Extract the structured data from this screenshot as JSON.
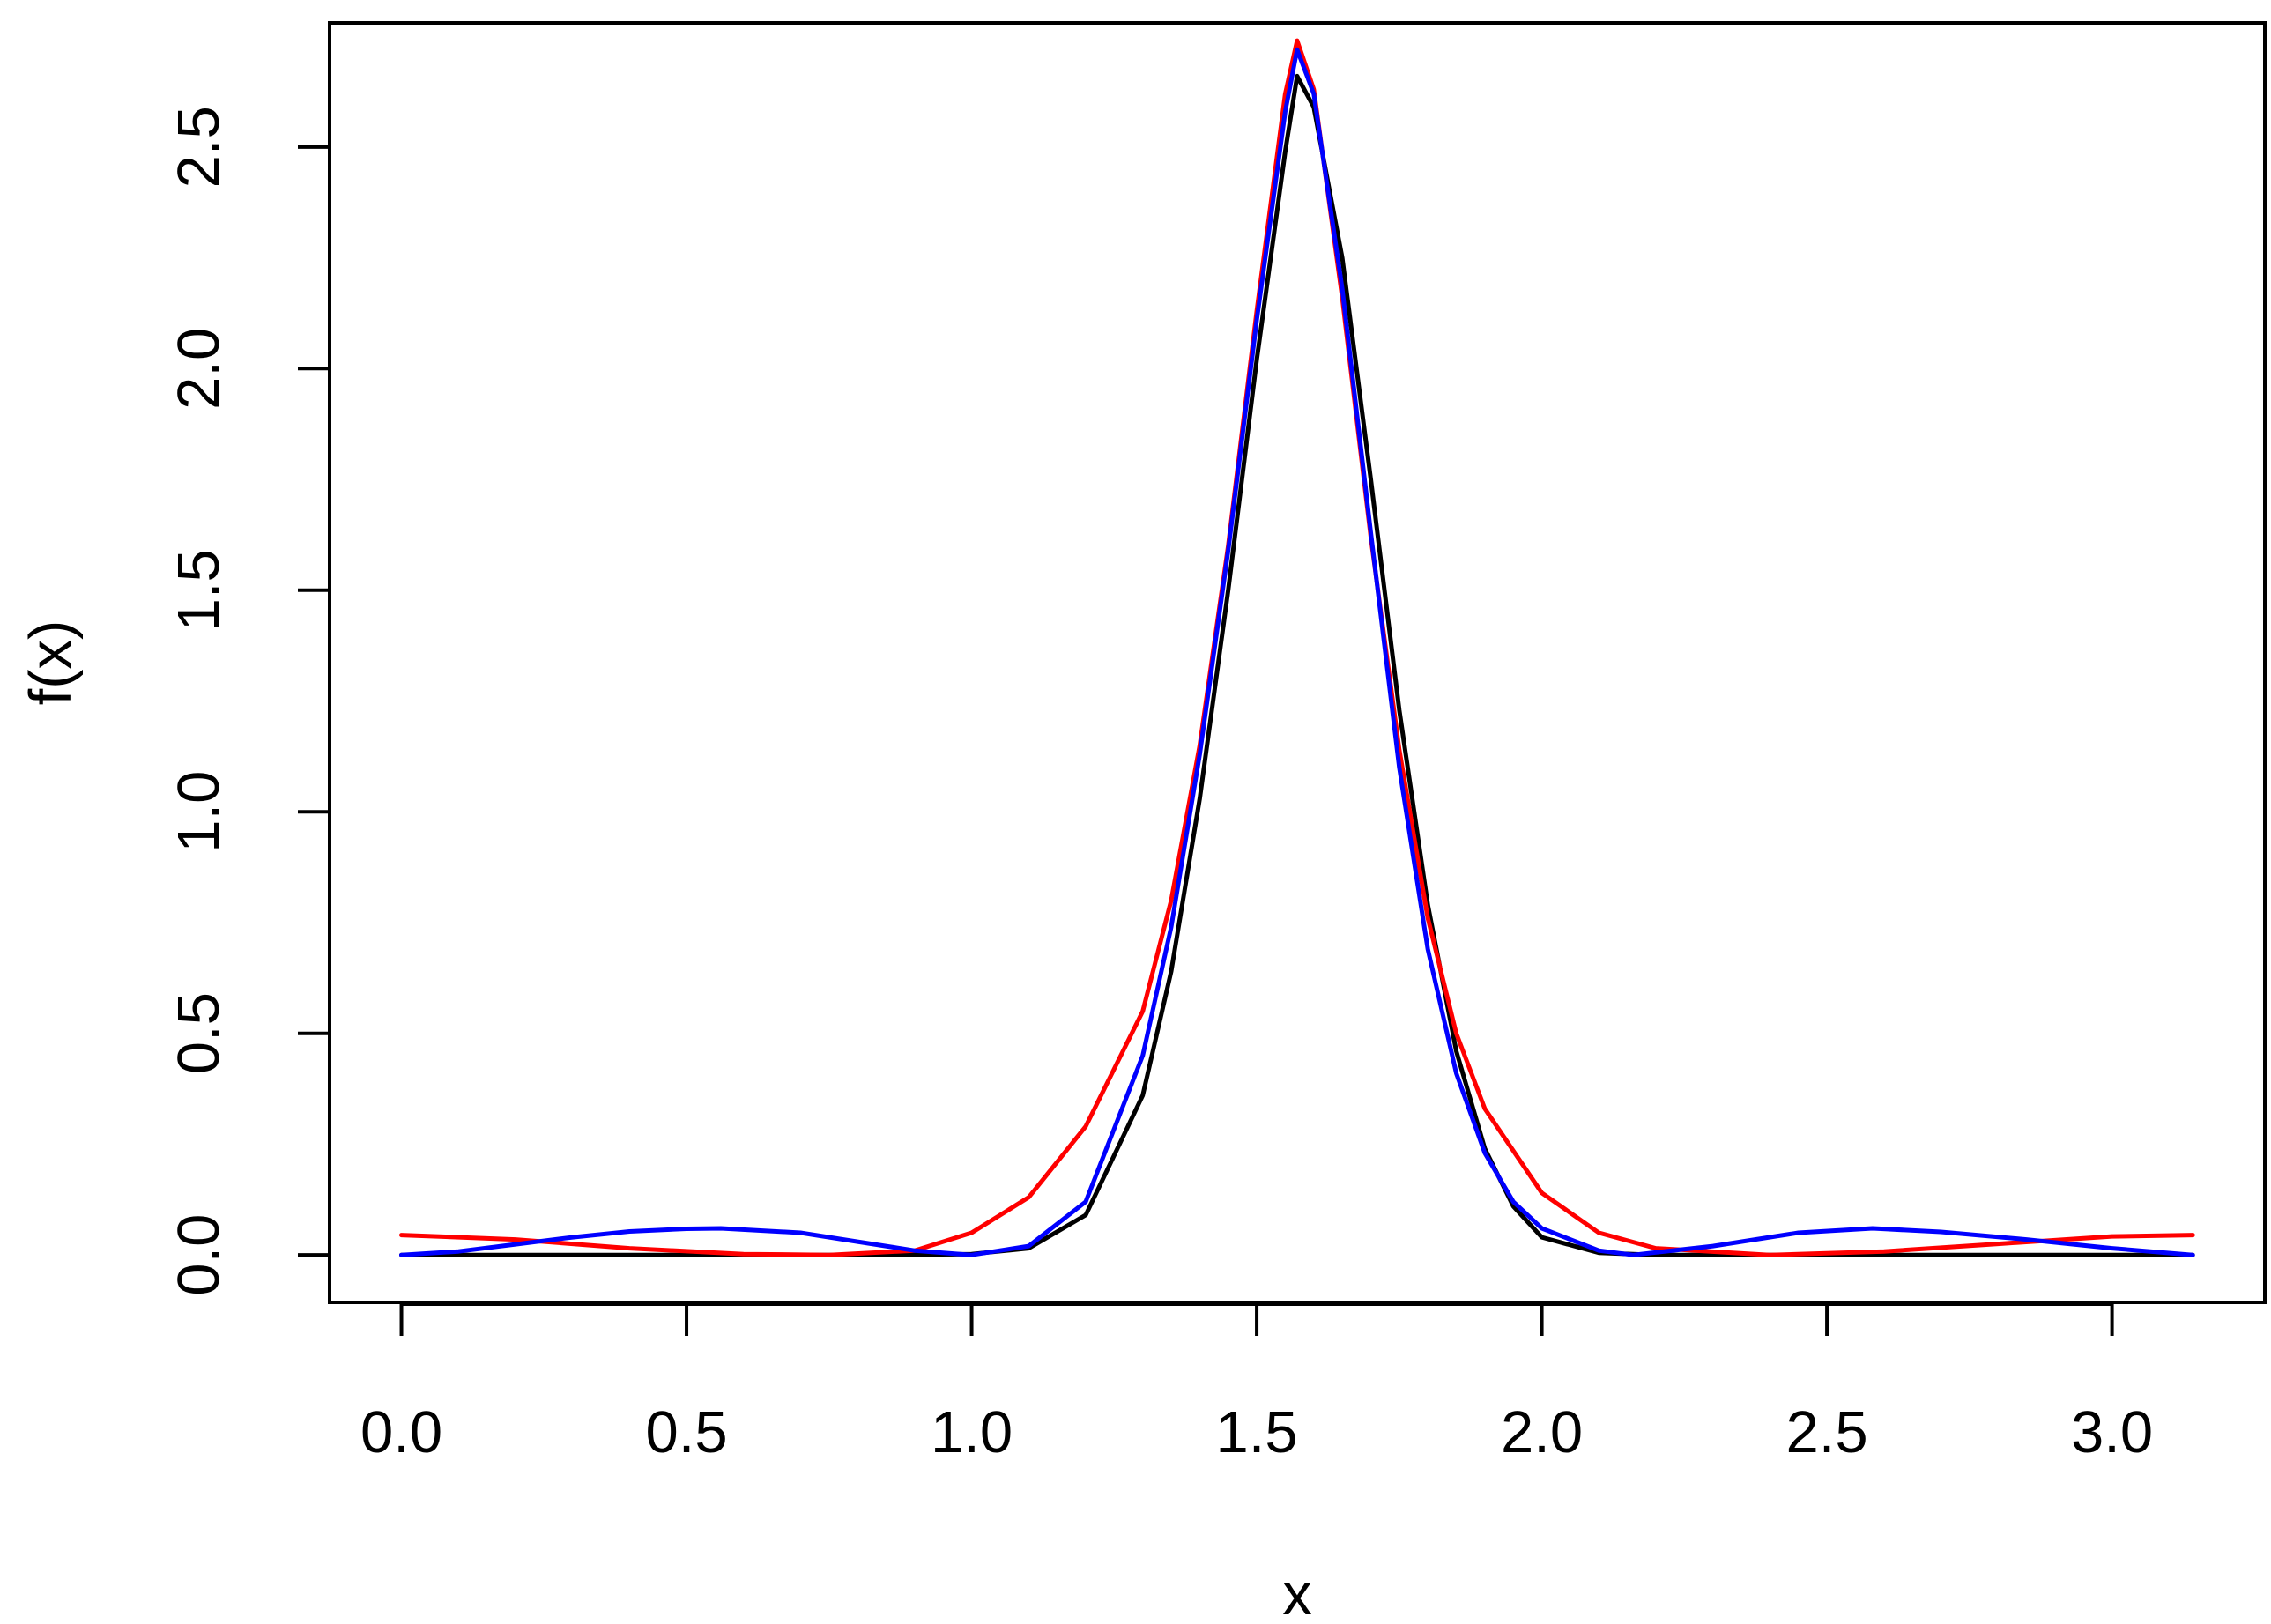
{
  "chart_data": {
    "type": "line",
    "title": "",
    "xlabel": "x",
    "ylabel": "f(x)",
    "xlim": [
      -0.126,
      3.268
    ],
    "ylim": [
      -0.107,
      2.78
    ],
    "x_ticks": [
      "0.0",
      "0.5",
      "1.0",
      "1.5",
      "2.0",
      "2.5",
      "3.0"
    ],
    "y_ticks": [
      "0.0",
      "0.5",
      "1.0",
      "1.5",
      "2.0",
      "2.5"
    ],
    "grid": false,
    "legend": "none",
    "series": [
      {
        "color": "#000000",
        "points": [
          [
            0.0,
            0.0
          ],
          [
            0.5,
            0.0
          ],
          [
            0.8,
            0.0
          ],
          [
            1.0,
            0.002
          ],
          [
            1.1,
            0.015
          ],
          [
            1.2,
            0.09
          ],
          [
            1.3,
            0.36
          ],
          [
            1.35,
            0.64
          ],
          [
            1.4,
            1.03
          ],
          [
            1.45,
            1.5
          ],
          [
            1.5,
            2.02
          ],
          [
            1.55,
            2.49
          ],
          [
            1.5708,
            2.66
          ],
          [
            1.6,
            2.59
          ],
          [
            1.65,
            2.25
          ],
          [
            1.7,
            1.75
          ],
          [
            1.75,
            1.23
          ],
          [
            1.8,
            0.79
          ],
          [
            1.85,
            0.46
          ],
          [
            1.9,
            0.24
          ],
          [
            1.95,
            0.11
          ],
          [
            2.0,
            0.04
          ],
          [
            2.1,
            0.005
          ],
          [
            2.2,
            0.0
          ],
          [
            2.5,
            0.0
          ],
          [
            3.14159,
            0.0
          ]
        ]
      },
      {
        "color": "#ff0000",
        "points": [
          [
            0.0,
            0.045
          ],
          [
            0.2,
            0.035
          ],
          [
            0.4,
            0.015
          ],
          [
            0.6,
            0.002
          ],
          [
            0.75,
            0.0
          ],
          [
            0.9,
            0.01
          ],
          [
            1.0,
            0.05
          ],
          [
            1.1,
            0.13
          ],
          [
            1.2,
            0.29
          ],
          [
            1.3,
            0.55
          ],
          [
            1.35,
            0.8
          ],
          [
            1.4,
            1.15
          ],
          [
            1.45,
            1.6
          ],
          [
            1.5,
            2.13
          ],
          [
            1.55,
            2.62
          ],
          [
            1.5708,
            2.74
          ],
          [
            1.6,
            2.63
          ],
          [
            1.65,
            2.16
          ],
          [
            1.7,
            1.62
          ],
          [
            1.75,
            1.14
          ],
          [
            1.8,
            0.76
          ],
          [
            1.85,
            0.5
          ],
          [
            1.9,
            0.33
          ],
          [
            2.0,
            0.14
          ],
          [
            2.1,
            0.05
          ],
          [
            2.2,
            0.015
          ],
          [
            2.4,
            0.0
          ],
          [
            2.6,
            0.008
          ],
          [
            2.8,
            0.025
          ],
          [
            3.0,
            0.042
          ],
          [
            3.14159,
            0.045
          ]
        ]
      },
      {
        "color": "#0000ff",
        "points": [
          [
            0.0,
            0.0
          ],
          [
            0.1,
            0.008
          ],
          [
            0.2,
            0.024
          ],
          [
            0.3,
            0.04
          ],
          [
            0.4,
            0.053
          ],
          [
            0.5,
            0.059
          ],
          [
            0.56,
            0.06
          ],
          [
            0.7,
            0.05
          ],
          [
            0.8,
            0.03
          ],
          [
            0.9,
            0.01
          ],
          [
            1.0,
            0.0
          ],
          [
            1.1,
            0.02
          ],
          [
            1.2,
            0.12
          ],
          [
            1.3,
            0.45
          ],
          [
            1.35,
            0.74
          ],
          [
            1.4,
            1.13
          ],
          [
            1.45,
            1.59
          ],
          [
            1.5,
            2.11
          ],
          [
            1.55,
            2.58
          ],
          [
            1.5708,
            2.72
          ],
          [
            1.6,
            2.62
          ],
          [
            1.65,
            2.18
          ],
          [
            1.7,
            1.63
          ],
          [
            1.75,
            1.1
          ],
          [
            1.8,
            0.69
          ],
          [
            1.85,
            0.41
          ],
          [
            1.9,
            0.23
          ],
          [
            1.95,
            0.12
          ],
          [
            2.0,
            0.06
          ],
          [
            2.1,
            0.01
          ],
          [
            2.16,
            0.0
          ],
          [
            2.3,
            0.02
          ],
          [
            2.45,
            0.05
          ],
          [
            2.58,
            0.06
          ],
          [
            2.7,
            0.052
          ],
          [
            2.85,
            0.035
          ],
          [
            3.0,
            0.015
          ],
          [
            3.14159,
            0.0
          ]
        ]
      }
    ]
  }
}
